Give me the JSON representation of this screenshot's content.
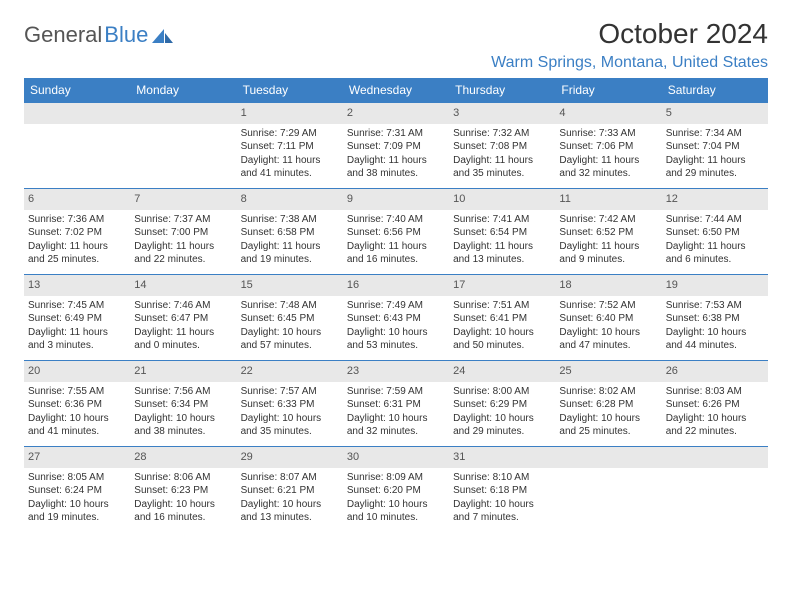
{
  "logo": {
    "text1": "General",
    "text2": "Blue"
  },
  "title": "October 2024",
  "location": "Warm Springs, Montana, United States",
  "colors": {
    "header_bg": "#3b7fc4",
    "header_fg": "#ffffff",
    "daynum_bg": "#e8e8e8",
    "rule": "#3b7fc4",
    "text": "#333333",
    "logo_gray": "#555555",
    "logo_blue": "#3b7fc4"
  },
  "day_headers": [
    "Sunday",
    "Monday",
    "Tuesday",
    "Wednesday",
    "Thursday",
    "Friday",
    "Saturday"
  ],
  "weeks": [
    [
      {
        "blank": true
      },
      {
        "blank": true
      },
      {
        "n": "1",
        "sr": "7:29 AM",
        "ss": "7:11 PM",
        "dl": "11 hours and 41 minutes."
      },
      {
        "n": "2",
        "sr": "7:31 AM",
        "ss": "7:09 PM",
        "dl": "11 hours and 38 minutes."
      },
      {
        "n": "3",
        "sr": "7:32 AM",
        "ss": "7:08 PM",
        "dl": "11 hours and 35 minutes."
      },
      {
        "n": "4",
        "sr": "7:33 AM",
        "ss": "7:06 PM",
        "dl": "11 hours and 32 minutes."
      },
      {
        "n": "5",
        "sr": "7:34 AM",
        "ss": "7:04 PM",
        "dl": "11 hours and 29 minutes."
      }
    ],
    [
      {
        "n": "6",
        "sr": "7:36 AM",
        "ss": "7:02 PM",
        "dl": "11 hours and 25 minutes."
      },
      {
        "n": "7",
        "sr": "7:37 AM",
        "ss": "7:00 PM",
        "dl": "11 hours and 22 minutes."
      },
      {
        "n": "8",
        "sr": "7:38 AM",
        "ss": "6:58 PM",
        "dl": "11 hours and 19 minutes."
      },
      {
        "n": "9",
        "sr": "7:40 AM",
        "ss": "6:56 PM",
        "dl": "11 hours and 16 minutes."
      },
      {
        "n": "10",
        "sr": "7:41 AM",
        "ss": "6:54 PM",
        "dl": "11 hours and 13 minutes."
      },
      {
        "n": "11",
        "sr": "7:42 AM",
        "ss": "6:52 PM",
        "dl": "11 hours and 9 minutes."
      },
      {
        "n": "12",
        "sr": "7:44 AM",
        "ss": "6:50 PM",
        "dl": "11 hours and 6 minutes."
      }
    ],
    [
      {
        "n": "13",
        "sr": "7:45 AM",
        "ss": "6:49 PM",
        "dl": "11 hours and 3 minutes."
      },
      {
        "n": "14",
        "sr": "7:46 AM",
        "ss": "6:47 PM",
        "dl": "11 hours and 0 minutes."
      },
      {
        "n": "15",
        "sr": "7:48 AM",
        "ss": "6:45 PM",
        "dl": "10 hours and 57 minutes."
      },
      {
        "n": "16",
        "sr": "7:49 AM",
        "ss": "6:43 PM",
        "dl": "10 hours and 53 minutes."
      },
      {
        "n": "17",
        "sr": "7:51 AM",
        "ss": "6:41 PM",
        "dl": "10 hours and 50 minutes."
      },
      {
        "n": "18",
        "sr": "7:52 AM",
        "ss": "6:40 PM",
        "dl": "10 hours and 47 minutes."
      },
      {
        "n": "19",
        "sr": "7:53 AM",
        "ss": "6:38 PM",
        "dl": "10 hours and 44 minutes."
      }
    ],
    [
      {
        "n": "20",
        "sr": "7:55 AM",
        "ss": "6:36 PM",
        "dl": "10 hours and 41 minutes."
      },
      {
        "n": "21",
        "sr": "7:56 AM",
        "ss": "6:34 PM",
        "dl": "10 hours and 38 minutes."
      },
      {
        "n": "22",
        "sr": "7:57 AM",
        "ss": "6:33 PM",
        "dl": "10 hours and 35 minutes."
      },
      {
        "n": "23",
        "sr": "7:59 AM",
        "ss": "6:31 PM",
        "dl": "10 hours and 32 minutes."
      },
      {
        "n": "24",
        "sr": "8:00 AM",
        "ss": "6:29 PM",
        "dl": "10 hours and 29 minutes."
      },
      {
        "n": "25",
        "sr": "8:02 AM",
        "ss": "6:28 PM",
        "dl": "10 hours and 25 minutes."
      },
      {
        "n": "26",
        "sr": "8:03 AM",
        "ss": "6:26 PM",
        "dl": "10 hours and 22 minutes."
      }
    ],
    [
      {
        "n": "27",
        "sr": "8:05 AM",
        "ss": "6:24 PM",
        "dl": "10 hours and 19 minutes."
      },
      {
        "n": "28",
        "sr": "8:06 AM",
        "ss": "6:23 PM",
        "dl": "10 hours and 16 minutes."
      },
      {
        "n": "29",
        "sr": "8:07 AM",
        "ss": "6:21 PM",
        "dl": "10 hours and 13 minutes."
      },
      {
        "n": "30",
        "sr": "8:09 AM",
        "ss": "6:20 PM",
        "dl": "10 hours and 10 minutes."
      },
      {
        "n": "31",
        "sr": "8:10 AM",
        "ss": "6:18 PM",
        "dl": "10 hours and 7 minutes."
      },
      {
        "blank": true
      },
      {
        "blank": true
      }
    ]
  ],
  "labels": {
    "sunrise_prefix": "Sunrise: ",
    "sunset_prefix": "Sunset: ",
    "daylight_prefix": "Daylight: "
  }
}
